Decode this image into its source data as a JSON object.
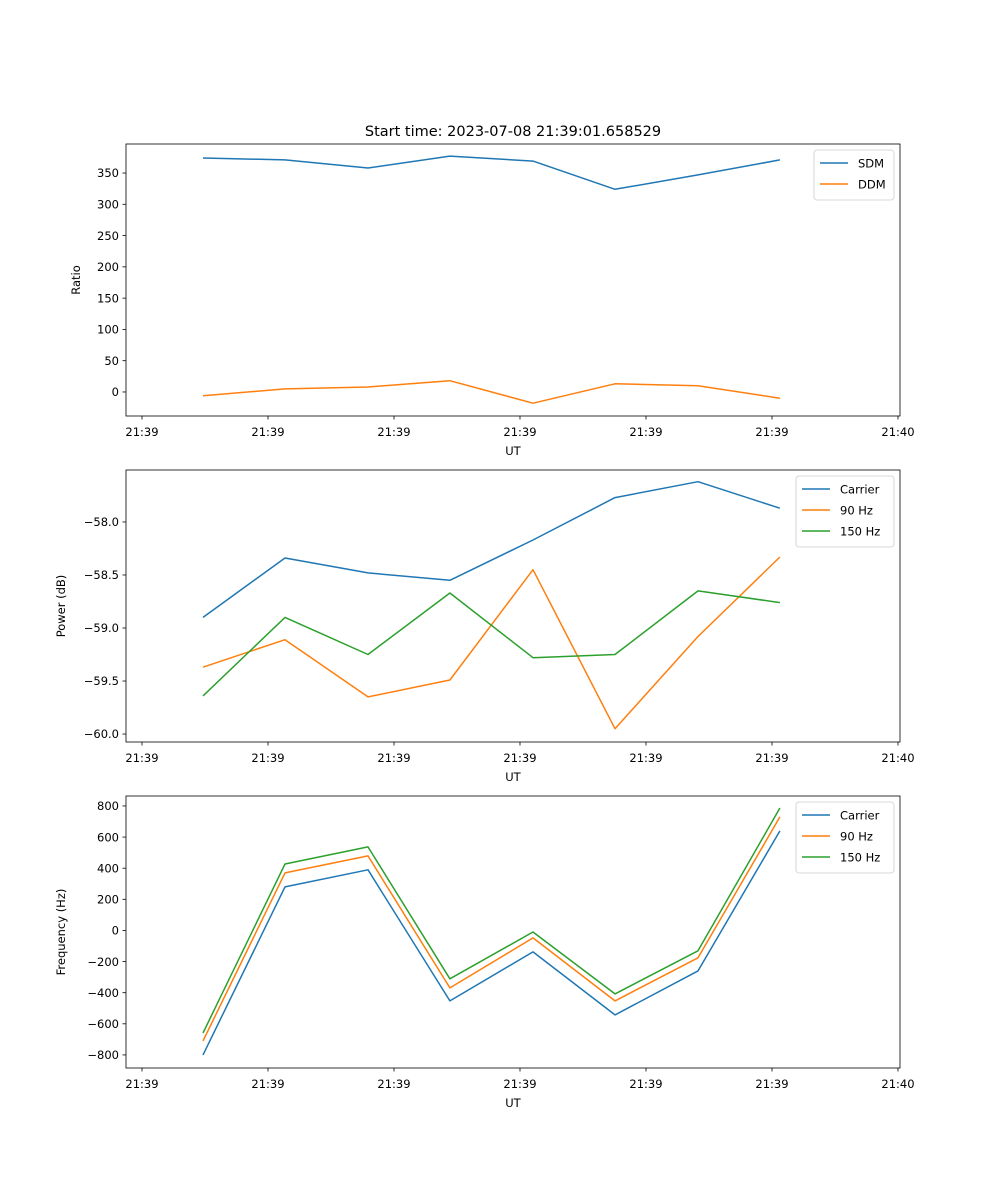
{
  "figure_title": "Start time: 2023-07-08 21:39:01.658529",
  "chart_data": [
    {
      "type": "line",
      "title": "Start time: 2023-07-08 21:39:01.658529",
      "xlabel": "UT",
      "ylabel": "Ratio",
      "x_tick_labels": [
        "21:39",
        "21:39",
        "21:39",
        "21:39",
        "21:39",
        "21:39",
        "21:40"
      ],
      "x_tick_positions": [
        0,
        1,
        2,
        3,
        4,
        5,
        6
      ],
      "xlim": [
        -0.127,
        6.016
      ],
      "ylim": [
        -38.4,
        396.4
      ],
      "y_ticks": [
        0,
        50,
        100,
        150,
        200,
        250,
        300,
        350
      ],
      "y_tick_labels": [
        "0",
        "50",
        "100",
        "150",
        "200",
        "250",
        "300",
        "350"
      ],
      "x": [
        0.484,
        1.135,
        1.794,
        2.444,
        3.103,
        3.754,
        4.413,
        5.063
      ],
      "legend_position": "top-right",
      "series": [
        {
          "name": "SDM",
          "color": "#1f77b4",
          "values": [
            374,
            371,
            358,
            377,
            369,
            324,
            347,
            371
          ]
        },
        {
          "name": "DDM",
          "color": "#ff7f0e",
          "values": [
            -6,
            5,
            8,
            18,
            -18,
            13,
            10,
            -10
          ]
        }
      ]
    },
    {
      "type": "line",
      "title": "",
      "xlabel": "UT",
      "ylabel": "Power (dB)",
      "x_tick_labels": [
        "21:39",
        "21:39",
        "21:39",
        "21:39",
        "21:39",
        "21:39",
        "21:40"
      ],
      "x_tick_positions": [
        0,
        1,
        2,
        3,
        4,
        5,
        6
      ],
      "xlim": [
        -0.127,
        6.016
      ],
      "ylim": [
        -60.075,
        -57.51
      ],
      "y_ticks": [
        -60.0,
        -59.5,
        -59.0,
        -58.5,
        -58.0
      ],
      "y_tick_labels": [
        "−60.0",
        "−59.5",
        "−59.0",
        "−58.5",
        "−58.0"
      ],
      "x": [
        0.484,
        1.135,
        1.794,
        2.444,
        3.103,
        3.754,
        4.413,
        5.063
      ],
      "legend_position": "top-right",
      "series": [
        {
          "name": "Carrier",
          "color": "#1f77b4",
          "values": [
            -58.9,
            -58.34,
            -58.48,
            -58.55,
            -58.17,
            -57.77,
            -57.62,
            -57.87
          ]
        },
        {
          "name": "90 Hz",
          "color": "#ff7f0e",
          "values": [
            -59.37,
            -59.11,
            -59.65,
            -59.49,
            -58.45,
            -59.95,
            -59.08,
            -58.33
          ]
        },
        {
          "name": "150 Hz",
          "color": "#2ca02c",
          "values": [
            -59.64,
            -58.9,
            -59.25,
            -58.67,
            -59.28,
            -59.25,
            -58.65,
            -58.76
          ]
        }
      ]
    },
    {
      "type": "line",
      "title": "",
      "xlabel": "UT",
      "ylabel": "Frequency (Hz)",
      "x_tick_labels": [
        "21:39",
        "21:39",
        "21:39",
        "21:39",
        "21:39",
        "21:39",
        "21:40"
      ],
      "x_tick_positions": [
        0,
        1,
        2,
        3,
        4,
        5,
        6
      ],
      "xlim": [
        -0.127,
        6.016
      ],
      "ylim": [
        -884,
        864
      ],
      "y_ticks": [
        -800,
        -600,
        -400,
        -200,
        0,
        200,
        400,
        600,
        800
      ],
      "y_tick_labels": [
        "−800",
        "−600",
        "−400",
        "−200",
        "0",
        "200",
        "400",
        "600",
        "800"
      ],
      "x": [
        0.484,
        1.135,
        1.794,
        2.444,
        3.103,
        3.754,
        4.413,
        5.063
      ],
      "legend_position": "top-right",
      "series": [
        {
          "name": "Carrier",
          "color": "#1f77b4",
          "values": [
            -800,
            280,
            390,
            -453,
            -138,
            -543,
            -260,
            640
          ]
        },
        {
          "name": "90 Hz",
          "color": "#ff7f0e",
          "values": [
            -710,
            370,
            479,
            -369,
            -48,
            -453,
            -176,
            730
          ]
        },
        {
          "name": "150 Hz",
          "color": "#2ca02c",
          "values": [
            -659,
            427,
            537,
            -311,
            -10,
            -408,
            -131,
            787
          ]
        }
      ]
    }
  ]
}
